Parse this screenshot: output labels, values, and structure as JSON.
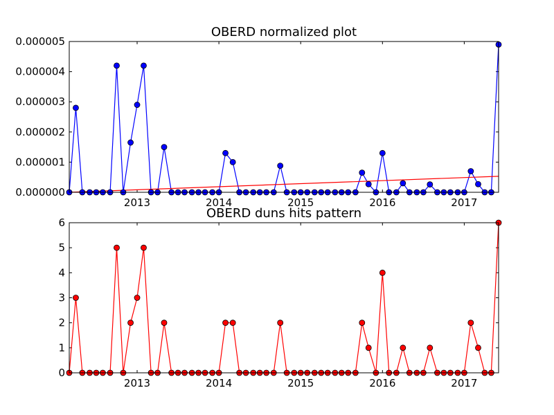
{
  "chart_data": [
    {
      "type": "line",
      "title": "OBERD normalized plot",
      "xlabel": "",
      "ylabel": "",
      "xlim": [
        2012.17,
        2017.42
      ],
      "ylim": [
        0,
        5e-06
      ],
      "x_ticks": [
        2013,
        2014,
        2015,
        2016,
        2017
      ],
      "x_tick_labels": [
        "2013",
        "2014",
        "2015",
        "2016",
        "2017"
      ],
      "y_ticks": [
        0,
        1e-06,
        2e-06,
        3e-06,
        4e-06,
        5e-06
      ],
      "y_tick_labels": [
        "0.000000",
        "0.000001",
        "0.000002",
        "0.000003",
        "0.000004",
        "0.000005"
      ],
      "x": [
        2012.17,
        2012.25,
        2012.33,
        2012.42,
        2012.5,
        2012.58,
        2012.67,
        2012.75,
        2012.83,
        2012.92,
        2013.0,
        2013.08,
        2013.17,
        2013.25,
        2013.33,
        2013.42,
        2013.5,
        2013.58,
        2013.67,
        2013.75,
        2013.83,
        2013.92,
        2014.0,
        2014.08,
        2014.17,
        2014.25,
        2014.33,
        2014.42,
        2014.5,
        2014.58,
        2014.67,
        2014.75,
        2014.83,
        2014.92,
        2015.0,
        2015.08,
        2015.17,
        2015.25,
        2015.33,
        2015.42,
        2015.5,
        2015.58,
        2015.67,
        2015.75,
        2015.83,
        2015.92,
        2016.0,
        2016.08,
        2016.17,
        2016.25,
        2016.33,
        2016.42,
        2016.5,
        2016.58,
        2016.67,
        2016.75,
        2016.83,
        2016.92,
        2017.0,
        2017.08,
        2017.17,
        2017.25,
        2017.33,
        2017.42
      ],
      "series": [
        {
          "color": "#0000ff",
          "marker": "circle",
          "values": [
            0,
            2.8e-06,
            0,
            0,
            0,
            0,
            0,
            4.2e-06,
            0,
            1.65e-06,
            2.9e-06,
            4.2e-06,
            0,
            0,
            1.5e-06,
            0,
            0,
            0,
            0,
            0,
            0,
            0,
            0,
            1.3e-06,
            1e-06,
            0,
            0,
            0,
            0,
            0,
            0,
            8.8e-07,
            0,
            0,
            0,
            0,
            0,
            0,
            0,
            0,
            0,
            0,
            0,
            6.5e-07,
            2.7e-07,
            0,
            1.3e-06,
            0,
            0,
            3e-07,
            0,
            0,
            0,
            2.6e-07,
            0,
            0,
            0,
            0,
            0,
            7e-07,
            2.7e-07,
            0,
            0,
            4.9e-06
          ]
        },
        {
          "color": "#ff0000",
          "marker": "none",
          "values_trend": [
            0,
            5.3e-07
          ]
        }
      ]
    },
    {
      "type": "line",
      "title": "OBERD duns hits pattern",
      "xlabel": "",
      "ylabel": "",
      "xlim": [
        2012.17,
        2017.42
      ],
      "ylim": [
        0,
        6
      ],
      "x_ticks": [
        2013,
        2014,
        2015,
        2016,
        2017
      ],
      "x_tick_labels": [
        "2013",
        "2014",
        "2015",
        "2016",
        "2017"
      ],
      "y_ticks": [
        0,
        1,
        2,
        3,
        4,
        5,
        6
      ],
      "y_tick_labels": [
        "0",
        "1",
        "2",
        "3",
        "4",
        "5",
        "6"
      ],
      "x": [
        2012.17,
        2012.25,
        2012.33,
        2012.42,
        2012.5,
        2012.58,
        2012.67,
        2012.75,
        2012.83,
        2012.92,
        2013.0,
        2013.08,
        2013.17,
        2013.25,
        2013.33,
        2013.42,
        2013.5,
        2013.58,
        2013.67,
        2013.75,
        2013.83,
        2013.92,
        2014.0,
        2014.08,
        2014.17,
        2014.25,
        2014.33,
        2014.42,
        2014.5,
        2014.58,
        2014.67,
        2014.75,
        2014.83,
        2014.92,
        2015.0,
        2015.08,
        2015.17,
        2015.25,
        2015.33,
        2015.42,
        2015.5,
        2015.58,
        2015.67,
        2015.75,
        2015.83,
        2015.92,
        2016.0,
        2016.08,
        2016.17,
        2016.25,
        2016.33,
        2016.42,
        2016.5,
        2016.58,
        2016.67,
        2016.75,
        2016.83,
        2016.92,
        2017.0,
        2017.08,
        2017.17,
        2017.25,
        2017.33,
        2017.42
      ],
      "series": [
        {
          "color": "#ff0000",
          "marker": "circle",
          "values": [
            0,
            3,
            0,
            0,
            0,
            0,
            0,
            5,
            0,
            2,
            3,
            5,
            0,
            0,
            2,
            0,
            0,
            0,
            0,
            0,
            0,
            0,
            0,
            2,
            2,
            0,
            0,
            0,
            0,
            0,
            0,
            2,
            0,
            0,
            0,
            0,
            0,
            0,
            0,
            0,
            0,
            0,
            0,
            2,
            1,
            0,
            4,
            0,
            0,
            1,
            0,
            0,
            0,
            1,
            0,
            0,
            0,
            0,
            0,
            2,
            1,
            0,
            0,
            6
          ]
        }
      ]
    }
  ]
}
